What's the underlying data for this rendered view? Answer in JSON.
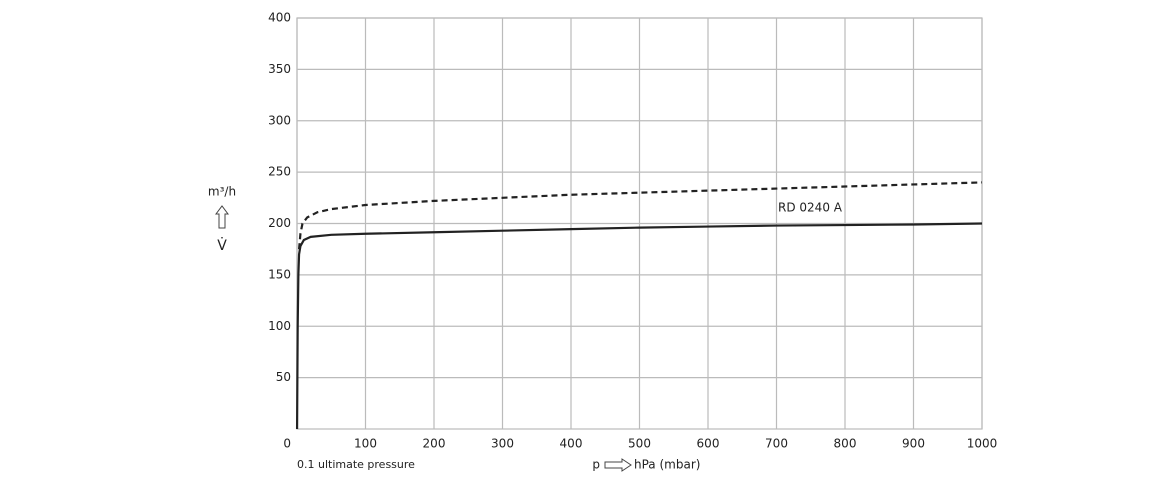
{
  "chart_data": {
    "type": "line",
    "y_label": "m³/h",
    "y_symbol": "V̇",
    "x_note": "0.1 ultimate pressure",
    "x_symbol": "p",
    "x_label": "hPa (mbar)",
    "annotation": "RD 0240 A",
    "xlim": [
      0,
      1000
    ],
    "xticks": [
      0,
      100,
      200,
      300,
      400,
      500,
      600,
      700,
      800,
      900,
      1000
    ],
    "ylim": [
      0,
      400
    ],
    "yticks": [
      50,
      100,
      150,
      200,
      250,
      300,
      350,
      400
    ],
    "grid": true,
    "series": [
      {
        "color": "#222222",
        "style": "solid",
        "x": [
          0.1,
          1,
          2,
          3,
          5,
          10,
          20,
          50,
          100,
          200,
          300,
          400,
          500,
          600,
          700,
          800,
          900,
          1000
        ],
        "values": [
          0,
          100,
          150,
          170,
          178,
          184,
          187,
          189,
          190,
          191.5,
          193,
          194.5,
          196,
          197,
          198,
          198.5,
          199,
          200
        ]
      },
      {
        "color": "#222222",
        "style": "dashed",
        "x": [
          3,
          5,
          8,
          15,
          30,
          50,
          100,
          200,
          300,
          400,
          500,
          600,
          700,
          800,
          900,
          1000
        ],
        "values": [
          175,
          190,
          200,
          206,
          211,
          214,
          218,
          222,
          225,
          228,
          230,
          232,
          234,
          236,
          238,
          240
        ]
      }
    ]
  }
}
